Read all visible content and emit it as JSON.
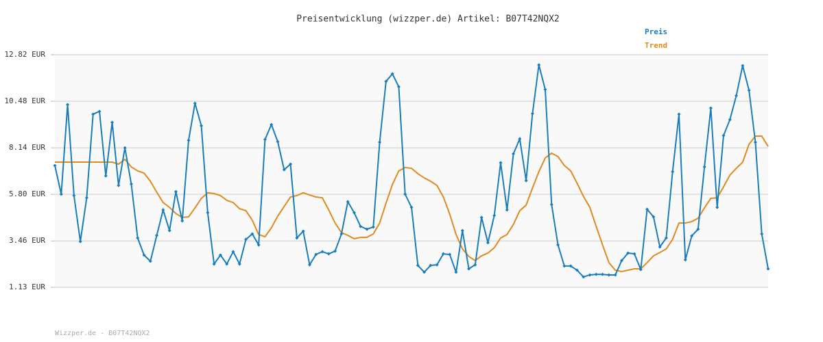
{
  "chart_data": {
    "type": "line",
    "title": "Preisentwicklung (wizzper.de) Artikel: B07T42NQX2",
    "footer": "Wizzper.de - B07T42NQX2",
    "ylim": [
      1.13,
      12.82
    ],
    "yticks": [
      {
        "value": 1.13,
        "label": "1.13 EUR"
      },
      {
        "value": 3.46,
        "label": "3.46 EUR"
      },
      {
        "value": 5.8,
        "label": "5.80 EUR"
      },
      {
        "value": 8.14,
        "label": "8.14 EUR"
      },
      {
        "value": 10.48,
        "label": "10.48 EUR"
      },
      {
        "value": 12.82,
        "label": "12.82 EUR"
      }
    ],
    "grid": true,
    "legend": "top-right",
    "series": [
      {
        "name": "Preis",
        "color": "#1a7dbb",
        "markers": true,
        "values": [
          7.25,
          5.81,
          10.31,
          5.74,
          3.43,
          5.63,
          9.83,
          9.97,
          6.73,
          9.42,
          6.25,
          8.14,
          6.32,
          3.61,
          2.75,
          2.44,
          3.74,
          5.02,
          3.98,
          5.94,
          4.47,
          8.52,
          10.38,
          9.25,
          4.88,
          2.3,
          2.75,
          2.3,
          2.92,
          2.3,
          3.54,
          3.81,
          3.26,
          8.56,
          9.31,
          8.45,
          7.04,
          7.32,
          3.61,
          3.95,
          2.26,
          2.78,
          2.92,
          2.81,
          2.95,
          3.81,
          5.43,
          4.88,
          4.19,
          4.05,
          4.16,
          8.42,
          11.48,
          11.86,
          11.21,
          5.81,
          5.15,
          2.23,
          1.89,
          2.23,
          2.26,
          2.81,
          2.78,
          1.89,
          3.98,
          2.06,
          2.26,
          4.64,
          3.37,
          4.74,
          7.39,
          5.02,
          7.84,
          8.59,
          6.49,
          9.86,
          12.31,
          11.07,
          5.29,
          3.26,
          2.2,
          2.2,
          1.99,
          1.65,
          1.75,
          1.78,
          1.78,
          1.75,
          1.75,
          2.47,
          2.85,
          2.81,
          2.02,
          5.05,
          4.67,
          3.16,
          3.61,
          6.94,
          9.83,
          2.51,
          3.71,
          4.05,
          7.18,
          10.14,
          5.15,
          8.76,
          9.56,
          10.76,
          12.27,
          11.03,
          8.42,
          3.81,
          2.06
        ]
      },
      {
        "name": "Trend",
        "color": "#e08a1f",
        "markers": false,
        "values": [
          7.42,
          7.42,
          7.42,
          7.42,
          7.42,
          7.42,
          7.42,
          7.42,
          7.42,
          7.42,
          7.32,
          7.56,
          7.18,
          6.98,
          6.87,
          6.46,
          5.91,
          5.39,
          5.15,
          4.84,
          4.64,
          4.67,
          5.12,
          5.6,
          5.88,
          5.84,
          5.74,
          5.5,
          5.39,
          5.08,
          4.98,
          4.5,
          3.78,
          3.67,
          4.12,
          4.71,
          5.19,
          5.67,
          5.74,
          5.88,
          5.77,
          5.67,
          5.63,
          5.02,
          4.36,
          3.88,
          3.74,
          3.57,
          3.64,
          3.64,
          3.81,
          4.36,
          5.36,
          6.29,
          6.98,
          7.15,
          7.11,
          6.84,
          6.63,
          6.46,
          6.25,
          5.67,
          4.81,
          3.78,
          3.06,
          2.68,
          2.47,
          2.71,
          2.85,
          3.12,
          3.61,
          3.78,
          4.29,
          4.98,
          5.26,
          6.12,
          6.94,
          7.63,
          7.87,
          7.7,
          7.25,
          6.98,
          6.36,
          5.7,
          5.15,
          4.19,
          3.26,
          2.37,
          1.99,
          1.92,
          1.99,
          2.06,
          2.06,
          2.37,
          2.71,
          2.88,
          3.06,
          3.54,
          4.36,
          4.36,
          4.43,
          4.6,
          5.12,
          5.6,
          5.63,
          6.18,
          6.77,
          7.11,
          7.42,
          8.32,
          8.73,
          8.73,
          8.21
        ]
      }
    ]
  }
}
